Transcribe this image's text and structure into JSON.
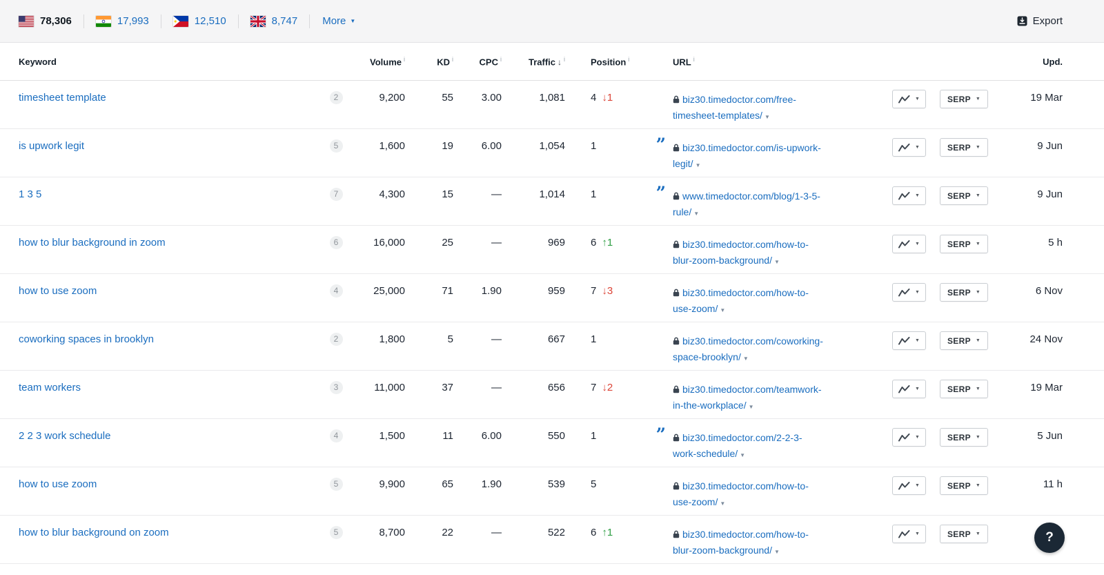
{
  "topbar": {
    "countries": [
      {
        "code": "us",
        "label": "United States",
        "count": "78,306",
        "active": true
      },
      {
        "code": "in",
        "label": "India",
        "count": "17,993",
        "active": false
      },
      {
        "code": "ph",
        "label": "Philippines",
        "count": "12,510",
        "active": false
      },
      {
        "code": "gb",
        "label": "United Kingdom",
        "count": "8,747",
        "active": false
      }
    ],
    "more_label": "More",
    "export_label": "Export"
  },
  "table": {
    "headers": {
      "keyword": "Keyword",
      "volume": "Volume",
      "kd": "KD",
      "cpc": "CPC",
      "traffic": "Traffic",
      "position": "Position",
      "url": "URL",
      "upd": "Upd."
    },
    "serp_button_label": "SERP",
    "rows": [
      {
        "keyword": "timesheet template",
        "badge": "2",
        "volume": "9,200",
        "kd": "55",
        "cpc": "3.00",
        "traffic": "1,081",
        "position": "4",
        "pos_change": "↓1",
        "pos_dir": "down",
        "quote": false,
        "url_line1": "biz30.timedoctor.com/free-",
        "url_line2": "timesheet-templates/",
        "updated": "19 Mar"
      },
      {
        "keyword": "is upwork legit",
        "badge": "5",
        "volume": "1,600",
        "kd": "19",
        "cpc": "6.00",
        "traffic": "1,054",
        "position": "1",
        "quote": true,
        "url_line1": "biz30.timedoctor.com/is-upwork-",
        "url_line2": "legit/",
        "updated": "9 Jun"
      },
      {
        "keyword": "1 3 5",
        "badge": "7",
        "volume": "4,300",
        "kd": "15",
        "cpc": "—",
        "traffic": "1,014",
        "position": "1",
        "quote": true,
        "url_line1": "www.timedoctor.com/blog/1-3-5-",
        "url_line2": "rule/",
        "updated": "9 Jun"
      },
      {
        "keyword": "how to blur background in zoom",
        "badge": "6",
        "volume": "16,000",
        "kd": "25",
        "cpc": "—",
        "traffic": "969",
        "position": "6",
        "pos_change": "↑1",
        "pos_dir": "up",
        "quote": false,
        "url_line1": "biz30.timedoctor.com/how-to-",
        "url_line2": "blur-zoom-background/",
        "updated": "5 h"
      },
      {
        "keyword": "how to use zoom",
        "badge": "4",
        "volume": "25,000",
        "kd": "71",
        "cpc": "1.90",
        "traffic": "959",
        "position": "7",
        "pos_change": "↓3",
        "pos_dir": "down",
        "quote": false,
        "url_line1": "biz30.timedoctor.com/how-to-",
        "url_line2": "use-zoom/",
        "updated": "6 Nov"
      },
      {
        "keyword": "coworking spaces in brooklyn",
        "badge": "2",
        "volume": "1,800",
        "kd": "5",
        "cpc": "—",
        "traffic": "667",
        "position": "1",
        "quote": false,
        "url_line1": "biz30.timedoctor.com/coworking-",
        "url_line2": "space-brooklyn/",
        "updated": "24 Nov"
      },
      {
        "keyword": "team workers",
        "badge": "3",
        "volume": "11,000",
        "kd": "37",
        "cpc": "—",
        "traffic": "656",
        "position": "7",
        "pos_change": "↓2",
        "pos_dir": "down",
        "quote": false,
        "url_line1": "biz30.timedoctor.com/teamwork-",
        "url_line2": "in-the-workplace/",
        "updated": "19 Mar"
      },
      {
        "keyword": "2 2 3 work schedule",
        "badge": "4",
        "volume": "1,500",
        "kd": "11",
        "cpc": "6.00",
        "traffic": "550",
        "position": "1",
        "quote": true,
        "url_line1": "biz30.timedoctor.com/2-2-3-",
        "url_line2": "work-schedule/",
        "updated": "5 Jun"
      },
      {
        "keyword": "how to use zoom",
        "badge": "5",
        "volume": "9,900",
        "kd": "65",
        "cpc": "1.90",
        "traffic": "539",
        "position": "5",
        "quote": false,
        "url_line1": "biz30.timedoctor.com/how-to-",
        "url_line2": "use-zoom/",
        "updated": "11 h"
      },
      {
        "keyword": "how to blur background on zoom",
        "badge": "5",
        "volume": "8,700",
        "kd": "22",
        "cpc": "—",
        "traffic": "522",
        "position": "6",
        "pos_change": "↑1",
        "pos_dir": "up",
        "quote": false,
        "url_line1": "biz30.timedoctor.com/how-to-",
        "url_line2": "blur-zoom-background/",
        "updated": ""
      }
    ]
  },
  "icons": {
    "caret": "▼",
    "sort_desc": "↓",
    "info": "i",
    "quote": "”"
  },
  "colors": {
    "link_blue": "#1a6dbf",
    "positive_green": "#2f9e44",
    "negative_red": "#dc4538",
    "badge_bg": "#eef0f1",
    "topbar_bg": "#f5f5f6",
    "help_bg": "#1b2835"
  },
  "help_label": "?"
}
